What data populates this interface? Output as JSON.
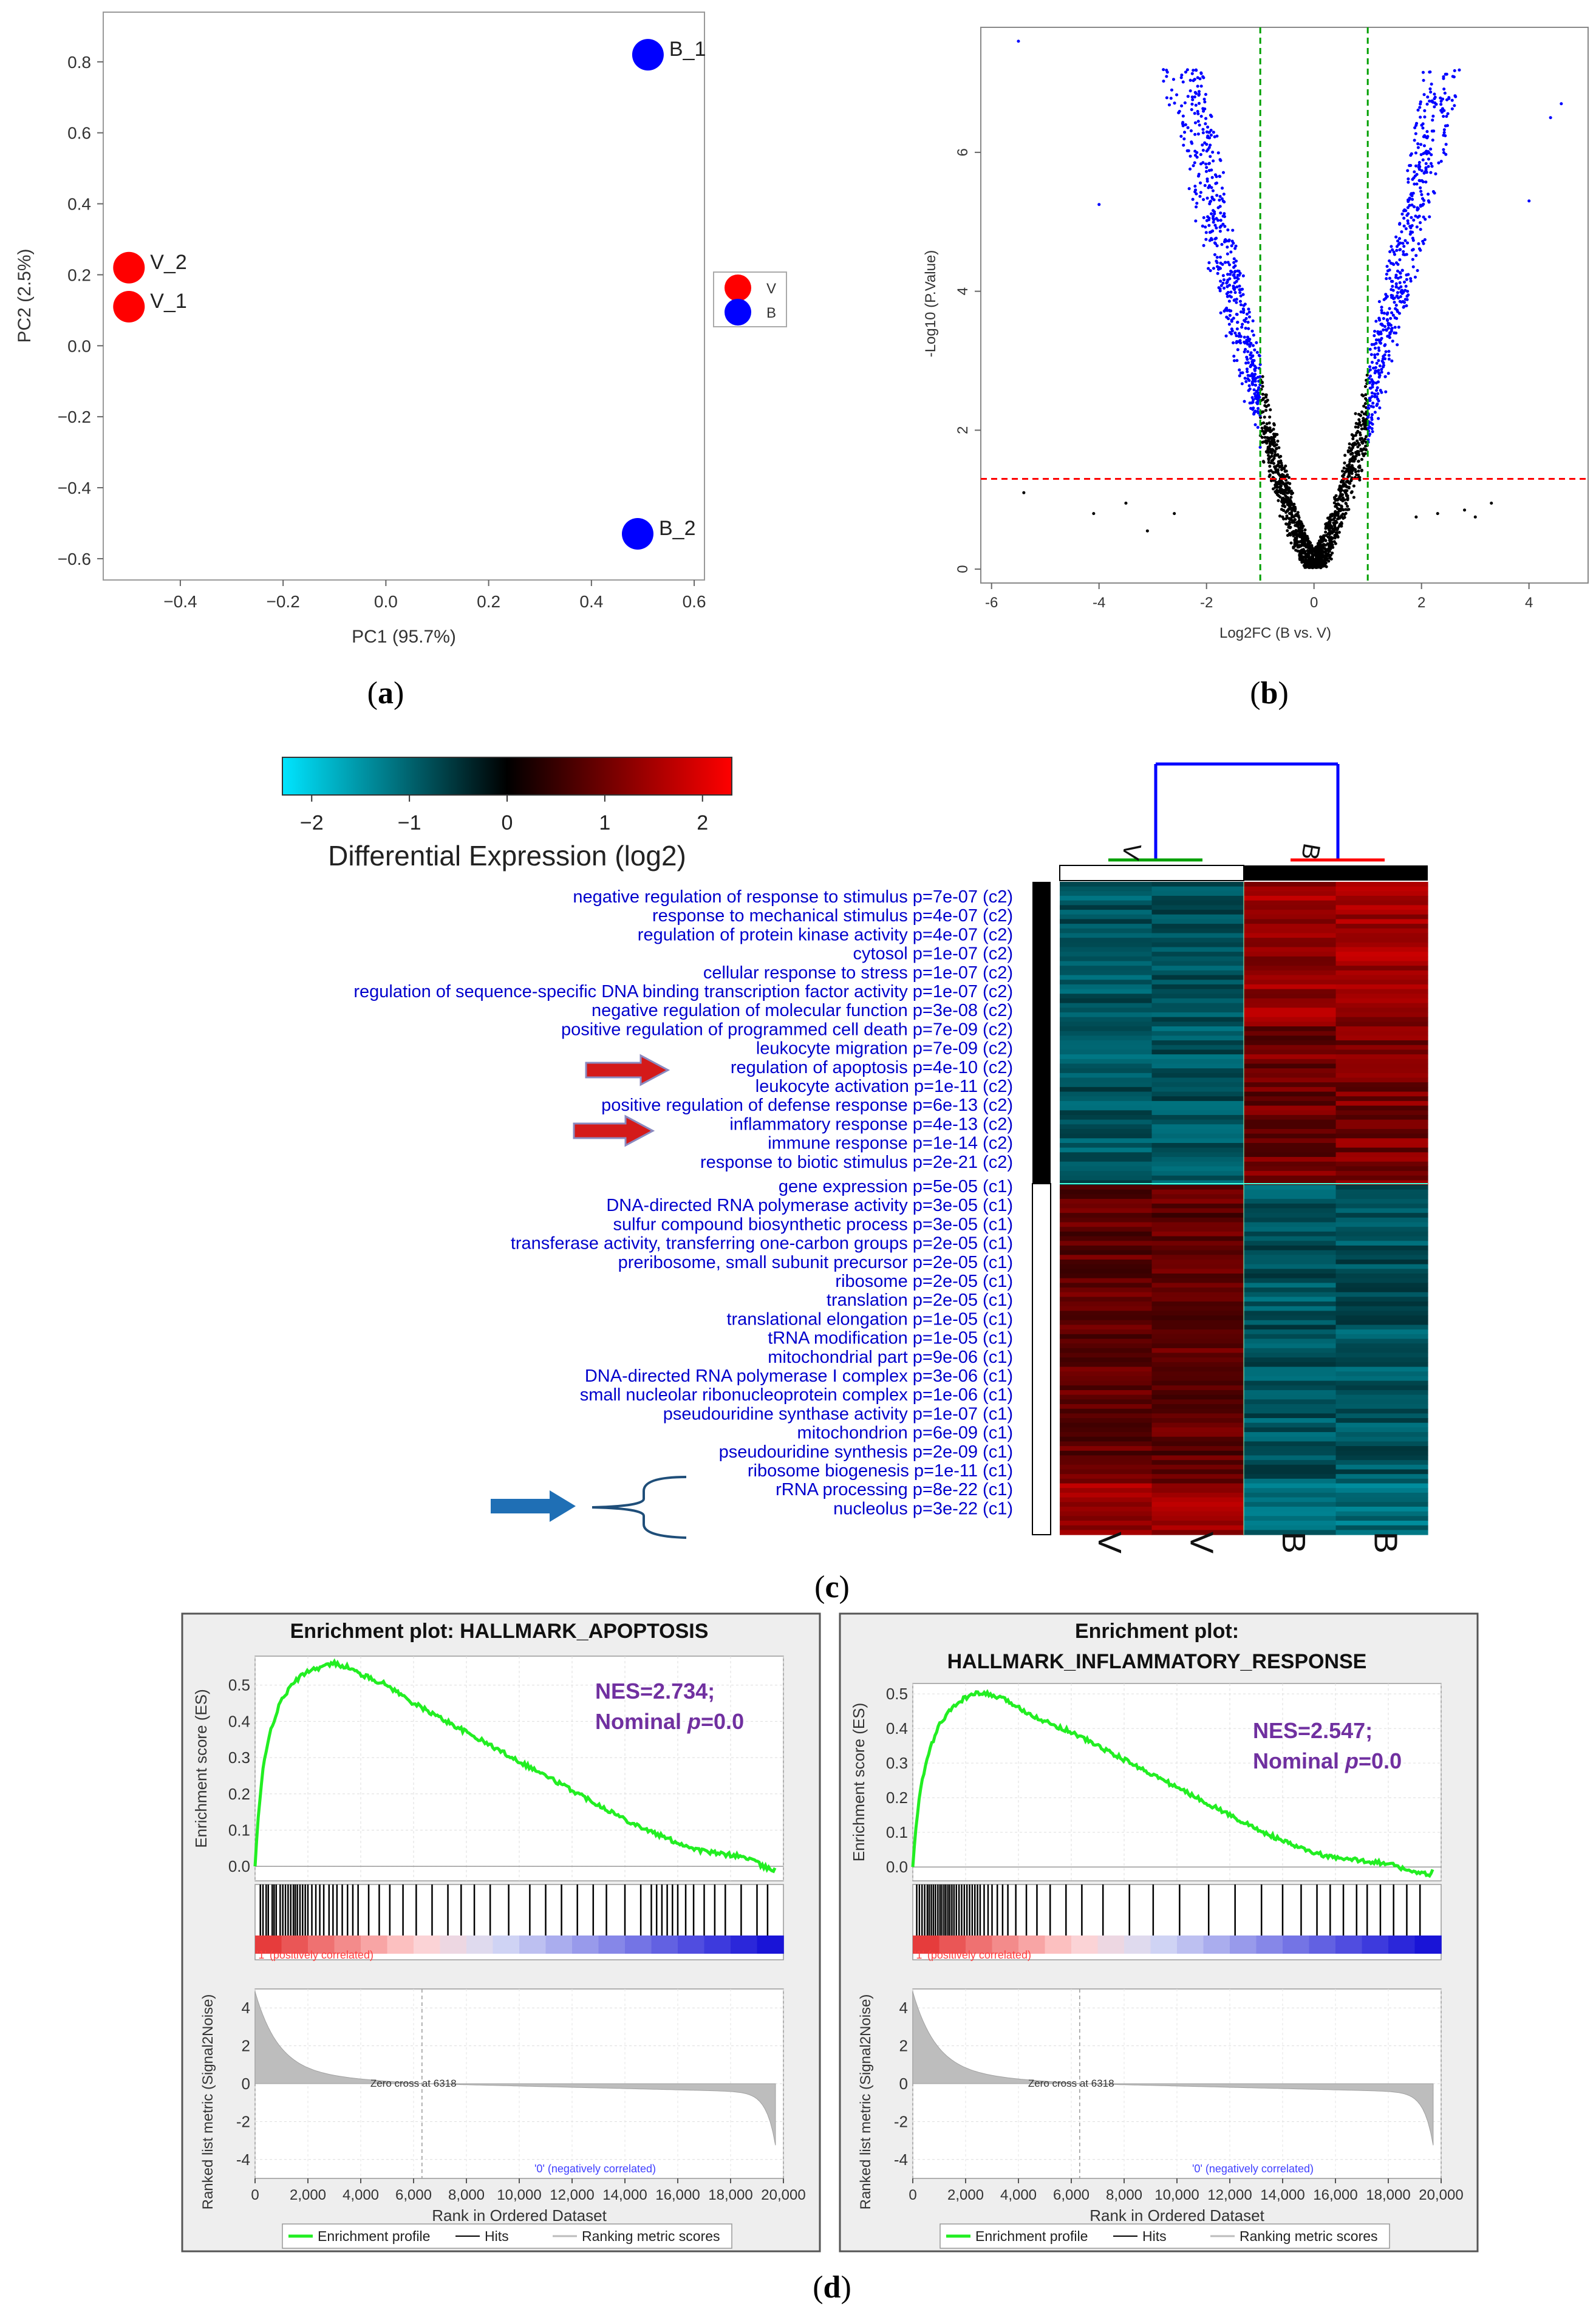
{
  "panels": {
    "a": {
      "label": "a"
    },
    "b": {
      "label": "b"
    },
    "c": {
      "label": "c"
    },
    "d": {
      "label": "d"
    }
  },
  "chart_data": [
    {
      "id": "a",
      "type": "scatter",
      "title": "",
      "xlabel": "PC1 (95.7%)",
      "ylabel": "PC2 (2.5%)",
      "xlim": [
        -0.55,
        0.62
      ],
      "ylim": [
        -0.66,
        0.94
      ],
      "xticks": [
        "−0.4",
        "−0.2",
        "0.0",
        "0.2",
        "0.4",
        "0.6"
      ],
      "yticks": [
        "0.8",
        "0.6",
        "0.4",
        "0.2",
        "0.0",
        "−0.2",
        "−0.4",
        "−0.6"
      ],
      "points": [
        {
          "label": "V_2",
          "x": -0.5,
          "y": 0.22,
          "group": "V"
        },
        {
          "label": "V_1",
          "x": -0.5,
          "y": 0.11,
          "group": "V"
        },
        {
          "label": "B_1",
          "x": 0.51,
          "y": 0.82,
          "group": "B"
        },
        {
          "label": "B_2",
          "x": 0.49,
          "y": -0.53,
          "group": "B"
        }
      ],
      "legend": [
        {
          "name": "V",
          "color": "#ff0000"
        },
        {
          "name": "B",
          "color": "#0000ff"
        }
      ],
      "colors": {
        "V": "#ff0000",
        "B": "#0000ff"
      }
    },
    {
      "id": "b",
      "type": "scatter",
      "title": "",
      "xlabel": "Log2FC (B vs. V)",
      "ylabel": "-Log10 (P.Value)",
      "xlim": [
        -6.2,
        5.1
      ],
      "ylim": [
        -0.2,
        7.8
      ],
      "xticks": [
        "-6",
        "-4",
        "-2",
        "0",
        "2",
        "4"
      ],
      "yticks": [
        "0",
        "2",
        "4",
        "6"
      ],
      "fc_threshold": 1,
      "p_threshold_log10": 1.3,
      "colors": {
        "significant": "#0000ff",
        "other": "#000000",
        "fc_line": "#00a000",
        "p_line": "#ff0000"
      }
    },
    {
      "id": "c",
      "type": "heatmap",
      "colorbar": {
        "title": "Differential Expression (log2)",
        "range": [
          -2.3,
          2.3
        ],
        "ticks": [
          "−2",
          "−1",
          "0",
          "1",
          "2"
        ],
        "colors": [
          "#00e5ff",
          "#000000",
          "#ff0000"
        ]
      },
      "columns": [
        "V",
        "V",
        "B",
        "B"
      ],
      "dendrogram": {
        "groups": [
          "V",
          "B"
        ],
        "colors": {
          "link": "#0000ff",
          "V": "#00a000",
          "B": "#ff0000"
        }
      },
      "terms": [
        "negative regulation of response to stimulus p=7e-07 (c2)",
        "response to mechanical stimulus p=4e-07 (c2)",
        "regulation of protein kinase activity p=4e-07 (c2)",
        "cytosol p=1e-07 (c2)",
        "cellular response to stress p=1e-07 (c2)",
        "regulation of sequence-specific DNA binding transcription factor activity p=1e-07 (c2)",
        "negative regulation of molecular function p=3e-08 (c2)",
        "positive regulation of programmed cell death p=7e-09 (c2)",
        "leukocyte migration p=7e-09 (c2)",
        "regulation of apoptosis p=4e-10 (c2)",
        "leukocyte activation p=1e-11 (c2)",
        "positive regulation of defense response p=6e-13 (c2)",
        "inflammatory response p=4e-13 (c2)",
        "immune response p=1e-14 (c2)",
        "response to biotic stimulus p=2e-21 (c2)",
        "gene expression p=5e-05 (c1)",
        "DNA-directed RNA polymerase activity p=3e-05 (c1)",
        "sulfur compound biosynthetic process p=3e-05 (c1)",
        "transferase activity, transferring one-carbon groups p=2e-05 (c1)",
        "preribosome, small subunit precursor p=2e-05 (c1)",
        "ribosome p=2e-05 (c1)",
        "translation p=2e-05 (c1)",
        "translational elongation p=1e-05 (c1)",
        "tRNA modification p=1e-05 (c1)",
        "mitochondrial part p=9e-06 (c1)",
        "DNA-directed RNA polymerase I complex p=3e-06 (c1)",
        "small nucleolar ribonucleoprotein complex p=1e-06 (c1)",
        "pseudouridine synthase activity p=1e-07 (c1)",
        "mitochondrion p=6e-09 (c1)",
        "pseudouridine synthesis p=2e-09 (c1)",
        "ribosome biogenesis p=1e-11 (c1)",
        "rRNA processing p=8e-22 (c1)",
        "nucleolus p=3e-22 (c1)"
      ],
      "colors": {
        "term_text": "#0000cc",
        "red_arrow": "#d41a1a",
        "blue_arrow": "#1f6fb5"
      }
    },
    {
      "id": "d1",
      "type": "line",
      "title": "Enrichment plot: HALLMARK_APOPTOSIS",
      "ylabel": "Enrichment score (ES)",
      "ylabel2": "Ranked list metric (Signal2Noise)",
      "xlabel": "Rank in Ordered Dataset",
      "annotation_nes": "NES=2.734;",
      "annotation_p_prefix": "Nominal ",
      "annotation_p_italic": "p",
      "annotation_p_suffix": "=0.0",
      "es_yticks": [
        "0.5",
        "0.4",
        "0.3",
        "0.2",
        "0.1",
        "0.0"
      ],
      "es_ylim": [
        -0.04,
        0.58
      ],
      "metric_yticks": [
        "4",
        "2",
        "0",
        "-2",
        "-4"
      ],
      "xticks": [
        "0",
        "2,000",
        "4,000",
        "6,000",
        "8,000",
        "10,000",
        "12,000",
        "14,000",
        "16,000",
        "18,000",
        "20,000"
      ],
      "xlim": [
        0,
        20000
      ],
      "zero_cross": "Zero cross at 6318",
      "pos_label": "'1' (positively correlated)",
      "neg_label": "'0' (negatively correlated)",
      "legend": [
        "Enrichment profile",
        "Hits",
        "Ranking metric scores"
      ],
      "es_curve": {
        "x": [
          0,
          100,
          300,
          600,
          1000,
          1500,
          2000,
          2500,
          3000,
          3500,
          4000,
          5000,
          6000,
          7000,
          8000,
          9000,
          10000,
          11000,
          12000,
          13000,
          14000,
          15000,
          16000,
          16800,
          17500,
          18200,
          18800,
          19200,
          19600,
          19700
        ],
        "y": [
          0,
          0.12,
          0.27,
          0.38,
          0.46,
          0.51,
          0.54,
          0.55,
          0.56,
          0.55,
          0.53,
          0.5,
          0.45,
          0.41,
          0.37,
          0.33,
          0.29,
          0.25,
          0.21,
          0.17,
          0.13,
          0.095,
          0.065,
          0.045,
          0.035,
          0.03,
          0.02,
          0.0,
          -0.01,
          0.0
        ]
      },
      "hits": [
        200,
        300,
        420,
        500,
        650,
        720,
        800,
        950,
        1050,
        1150,
        1250,
        1350,
        1450,
        1520,
        1600,
        1700,
        1800,
        1900,
        2000,
        2150,
        2300,
        2450,
        2600,
        2800,
        2950,
        3100,
        3300,
        3500,
        3700,
        3900,
        4300,
        4700,
        5100,
        5600,
        6100,
        6700,
        7300,
        7800,
        8300,
        8900,
        9600,
        10400,
        11000,
        11600,
        12200,
        12800,
        13300,
        14000,
        14600,
        15000,
        15200,
        15400,
        15600,
        15800,
        16000,
        16300,
        16600,
        17000,
        17400,
        17800,
        18400,
        19000,
        19400
      ],
      "colors": {
        "curve": "#22ee22",
        "metric_fill": "#bdbdbd",
        "nes_text": "#7030a0",
        "pos_text": "#ff4040",
        "neg_text": "#4040ff"
      }
    },
    {
      "id": "d2",
      "type": "line",
      "title": "Enrichment plot:",
      "title2": "HALLMARK_INFLAMMATORY_RESPONSE",
      "ylabel": "Enrichment score (ES)",
      "ylabel2": "Ranked list metric (Signal2Noise)",
      "xlabel": "Rank in Ordered Dataset",
      "annotation_nes": "NES=2.547;",
      "annotation_p_prefix": "Nominal ",
      "annotation_p_italic": "p",
      "annotation_p_suffix": "=0.0",
      "es_yticks": [
        "0.5",
        "0.4",
        "0.3",
        "0.2",
        "0.1",
        "0.0"
      ],
      "es_ylim": [
        -0.04,
        0.53
      ],
      "metric_yticks": [
        "4",
        "2",
        "0",
        "-2",
        "-4"
      ],
      "xticks": [
        "0",
        "2,000",
        "4,000",
        "6,000",
        "8,000",
        "10,000",
        "12,000",
        "14,000",
        "16,000",
        "18,000",
        "20,000"
      ],
      "xlim": [
        0,
        20000
      ],
      "zero_cross": "Zero cross at 6318",
      "pos_label": "'1' (positively correlated)",
      "neg_label": "'0' (negatively correlated)",
      "legend": [
        "Enrichment profile",
        "Hits",
        "Ranking metric scores"
      ],
      "es_curve": {
        "x": [
          0,
          100,
          300,
          600,
          1000,
          1500,
          2000,
          2400,
          2800,
          3200,
          3600,
          4000,
          5000,
          6000,
          7000,
          8000,
          9000,
          10000,
          11000,
          12000,
          13000,
          14000,
          15000,
          16000,
          16800,
          17500,
          18200,
          18800,
          19200,
          19600,
          19700
        ],
        "y": [
          0,
          0.1,
          0.23,
          0.33,
          0.41,
          0.46,
          0.49,
          0.5,
          0.5,
          0.49,
          0.48,
          0.46,
          0.42,
          0.39,
          0.35,
          0.31,
          0.27,
          0.23,
          0.19,
          0.15,
          0.11,
          0.075,
          0.045,
          0.025,
          0.02,
          0.015,
          0.005,
          -0.01,
          -0.02,
          -0.02,
          -0.005
        ]
      },
      "hits": [
        150,
        250,
        350,
        450,
        550,
        620,
        700,
        780,
        860,
        950,
        1030,
        1100,
        1180,
        1250,
        1330,
        1400,
        1480,
        1560,
        1650,
        1750,
        1850,
        1950,
        2050,
        2150,
        2250,
        2350,
        2450,
        2550,
        2700,
        2850,
        3000,
        3200,
        3400,
        3600,
        3900,
        4300,
        4700,
        5200,
        5800,
        6400,
        7200,
        8200,
        9100,
        10100,
        11200,
        12200,
        13200,
        14000,
        14700,
        15300,
        15800,
        16300,
        16800,
        17200,
        17700,
        18200,
        18700,
        19200
      ],
      "colors": {
        "curve": "#22ee22",
        "metric_fill": "#bdbdbd",
        "nes_text": "#7030a0",
        "pos_text": "#ff4040",
        "neg_text": "#4040ff"
      }
    }
  ]
}
